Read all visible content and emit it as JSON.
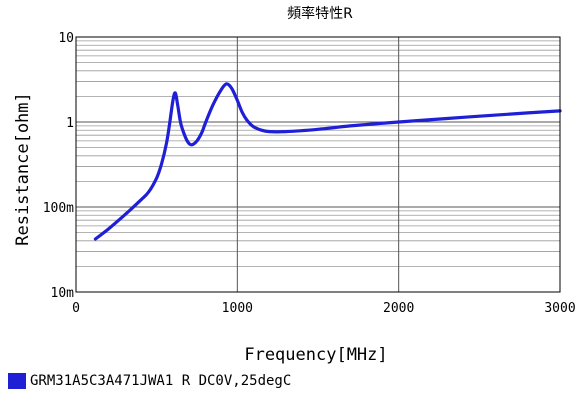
{
  "chart_data": {
    "type": "line",
    "title": "頻率特性R",
    "xlabel": "Frequency[MHz]",
    "ylabel": "Resistance[ohm]",
    "x_scale": "linear",
    "y_scale": "log",
    "xlim": [
      0,
      3000
    ],
    "ylim": [
      0.01,
      10
    ],
    "x_ticks": [
      {
        "value": 0,
        "label": "0"
      },
      {
        "value": 1000,
        "label": "1000"
      },
      {
        "value": 2000,
        "label": "2000"
      },
      {
        "value": 3000,
        "label": "3000"
      }
    ],
    "y_ticks": [
      {
        "value": 0.01,
        "label": "10m"
      },
      {
        "value": 0.1,
        "label": "100m"
      },
      {
        "value": 1,
        "label": "1"
      },
      {
        "value": 10,
        "label": "10"
      }
    ],
    "grid": true,
    "legend_position": "bottom-left",
    "series": [
      {
        "name": "GRM31A5C3A471JWA1 R DC0V,25degC",
        "color": "#1f1fd6",
        "x": [
          120,
          200,
          300,
          400,
          450,
          500,
          530,
          560,
          580,
          600,
          615,
          630,
          650,
          680,
          700,
          720,
          750,
          780,
          800,
          850,
          900,
          930,
          950,
          970,
          1000,
          1030,
          1060,
          1100,
          1150,
          1200,
          1300,
          1500,
          1700,
          2000,
          2300,
          2500,
          2800,
          3000
        ],
        "y": [
          0.042,
          0.055,
          0.08,
          0.12,
          0.15,
          0.22,
          0.32,
          0.55,
          0.95,
          1.75,
          2.2,
          1.6,
          0.95,
          0.65,
          0.56,
          0.54,
          0.6,
          0.75,
          0.95,
          1.6,
          2.4,
          2.8,
          2.7,
          2.4,
          1.8,
          1.3,
          1.05,
          0.88,
          0.8,
          0.77,
          0.77,
          0.82,
          0.9,
          1.0,
          1.1,
          1.17,
          1.28,
          1.35
        ]
      }
    ]
  }
}
